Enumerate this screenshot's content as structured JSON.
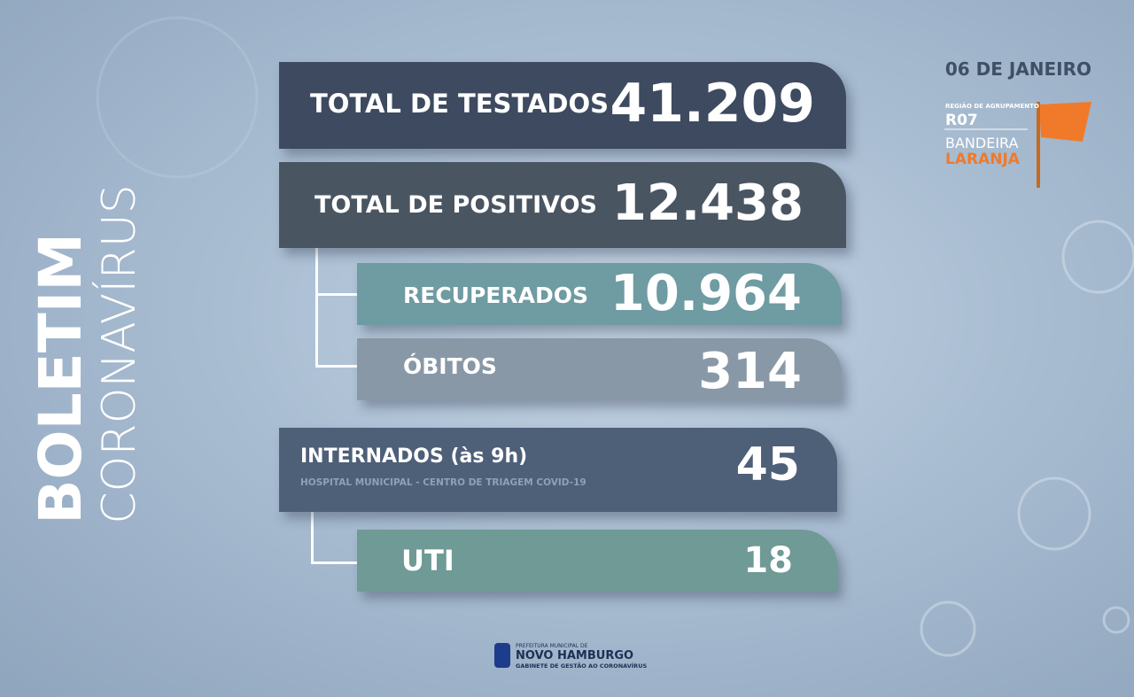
{
  "sidebar": {
    "title": "BOLETIM",
    "subtitle": "CORONAVÍRUS"
  },
  "header": {
    "date": "06 DE JANEIRO",
    "region_label": "REGIÃO DE AGRUPAMENTO",
    "region": "R07",
    "flag_label": "BANDEIRA",
    "flag_color": "LARANJA"
  },
  "cards": [
    {
      "label": "TOTAL DE TESTADOS",
      "value": "41.209"
    },
    {
      "label": "TOTAL DE POSITIVOS",
      "value": "12.438"
    },
    {
      "label": "RECUPERADOS",
      "value": "10.964"
    },
    {
      "label": "ÓBITOS",
      "value": "314"
    },
    {
      "label": "INTERNADOS (às 9h)",
      "note": "HOSPITAL MUNICIPAL - CENTRO DE TRIAGEM COVID-19",
      "value": "45"
    },
    {
      "label": "UTI",
      "value": "18"
    }
  ],
  "footer": {
    "line1": "PREFEITURA MUNICIPAL DE",
    "name": "NOVO HAMBURGO",
    "line2": "GABINETE DE GESTÃO AO CORONAVÍRUS"
  }
}
